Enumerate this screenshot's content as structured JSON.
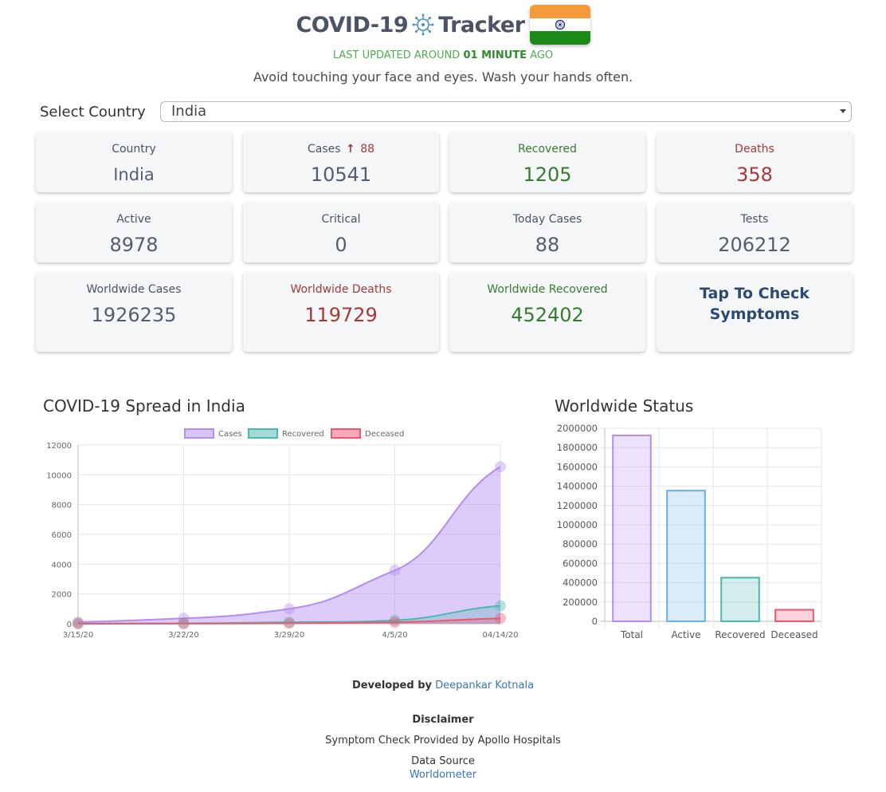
{
  "header": {
    "title_left": "COVID-19",
    "title_right": "Tracker",
    "updated_prefix": "LAST UPDATED AROUND",
    "updated_value": "01 MINUTE",
    "updated_suffix": "AGO",
    "advice": "Avoid touching your face and eyes. Wash your hands often."
  },
  "selector": {
    "label": "Select Country",
    "selected": "India"
  },
  "cards": {
    "country": {
      "label": "Country",
      "value": "India"
    },
    "cases": {
      "label": "Cases",
      "delta": "88",
      "value": "10541"
    },
    "recovered": {
      "label": "Recovered",
      "value": "1205"
    },
    "deaths": {
      "label": "Deaths",
      "value": "358"
    },
    "active": {
      "label": "Active",
      "value": "8978"
    },
    "critical": {
      "label": "Critical",
      "value": "0"
    },
    "today_cases": {
      "label": "Today Cases",
      "value": "88"
    },
    "tests": {
      "label": "Tests",
      "value": "206212"
    },
    "ww_cases": {
      "label": "Worldwide Cases",
      "value": "1926235"
    },
    "ww_deaths": {
      "label": "Worldwide Deaths",
      "value": "119729"
    },
    "ww_recovered": {
      "label": "Worldwide Recovered",
      "value": "452402"
    },
    "symptoms": {
      "label_line1": "Tap To Check",
      "label_line2": "Symptoms"
    }
  },
  "colors": {
    "cases": "#b48cf2",
    "recovered": "#4bb8b0",
    "deceased": "#f0566f",
    "active": "#6aaee8"
  },
  "chart_data": [
    {
      "type": "area",
      "title": "COVID-19 Spread in India",
      "x": [
        "3/15/20",
        "3/22/20",
        "3/29/20",
        "4/5/20",
        "04/14/20"
      ],
      "series": [
        {
          "name": "Cases",
          "values": [
            110,
            360,
            1000,
            3580,
            10541
          ]
        },
        {
          "name": "Recovered",
          "values": [
            13,
            23,
            100,
            230,
            1205
          ]
        },
        {
          "name": "Deceased",
          "values": [
            2,
            7,
            30,
            100,
            358
          ]
        }
      ],
      "ylim": [
        0,
        12000
      ],
      "yticks": [
        0,
        2000,
        4000,
        6000,
        8000,
        10000,
        12000
      ],
      "legend": "top-center",
      "grid": true
    },
    {
      "type": "bar",
      "title": "Worldwide Status",
      "categories": [
        "Total",
        "Active",
        "Recovered",
        "Deceased"
      ],
      "values": [
        1926235,
        1354104,
        452402,
        119729
      ],
      "ylim": [
        0,
        2000000
      ],
      "yticks": [
        0,
        200000,
        400000,
        600000,
        800000,
        1000000,
        1200000,
        1400000,
        1600000,
        1800000,
        2000000
      ],
      "grid": true
    }
  ],
  "footer": {
    "developed_by": "Developed by",
    "developer": "Deepankar Kotnala",
    "disclaimer": "Disclaimer",
    "symptom_check": "Symptom Check Provided by Apollo Hospitals",
    "data_source": "Data Source",
    "source_link": "Worldometer"
  }
}
